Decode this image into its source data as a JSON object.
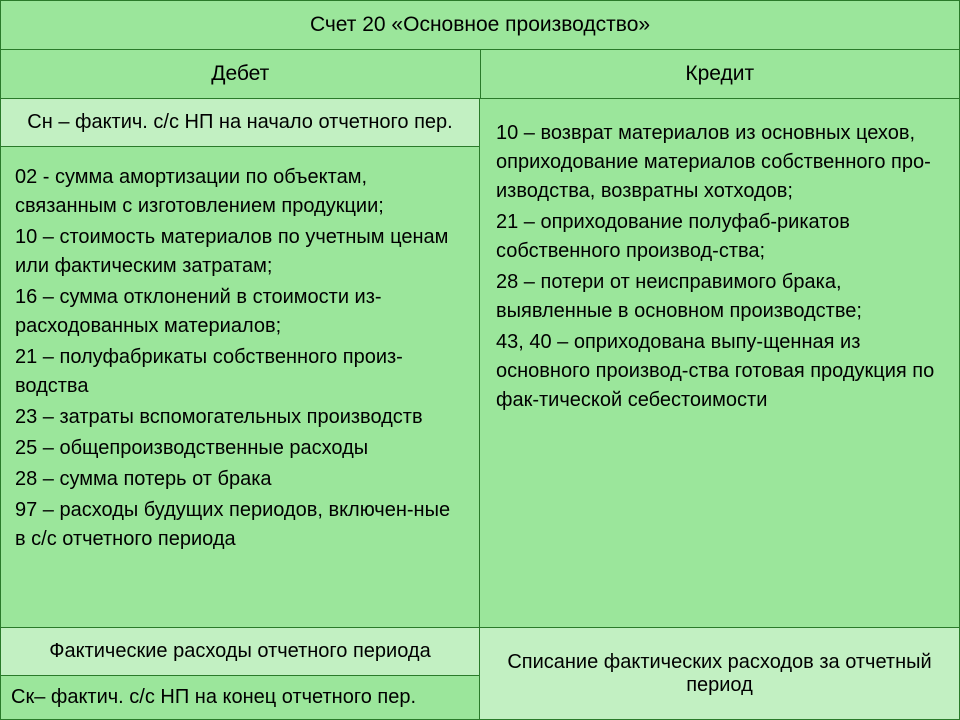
{
  "title": "Счет 20 «Основное производство»",
  "header": {
    "debit": "Дебет",
    "credit": "Кредит"
  },
  "sn": "Сн – фактич. с/с НП на начало отчетного пер.",
  "debit_entries": {
    "e02": "02 - сумма амортизации по объектам, связанным с изготовлением продукции;",
    "e10": "10 – стоимость материалов по учетным ценам или фактическим затратам;",
    "e16": "16 – сумма отклонений в стоимости из-расходованных материалов;",
    "e21": "21 – полуфабрикаты собственного произ-водства",
    "e23": "23 – затраты вспомогательных производств",
    "e25": "25 – общепроизводственные расходы",
    "e28": "28 – сумма потерь от брака",
    "e97": "97 – расходы будущих периодов, включен-ные в с/с отчетного периода"
  },
  "credit_entries": {
    "e10": "10 – возврат материалов из основных цехов, оприходование материалов собственного про-изводства, возвратны хотходов;",
    "e21": "21 – оприходование полуфаб-рикатов собственного производ-ства;",
    "e28": "28 – потери от неисправимого брака, выявленные в основном производстве;",
    "e43": "43, 40 – оприходована выпу-щенная из основного производ-ства готовая продукция по фак-тической  себестоимости"
  },
  "bottom": {
    "fact_rasx": "Фактические расходы отчетного периода",
    "sk": "Ск– фактич. с/с НП на конец отчетного пер.",
    "spisanie": "Списание фактических расходов за отчетный период"
  },
  "colors": {
    "bg_main": "#9be69b",
    "bg_light": "#c2f0c2",
    "border": "#2a7a2a",
    "text": "#000000"
  },
  "fonts": {
    "body_size": 20,
    "title_size": 21
  }
}
